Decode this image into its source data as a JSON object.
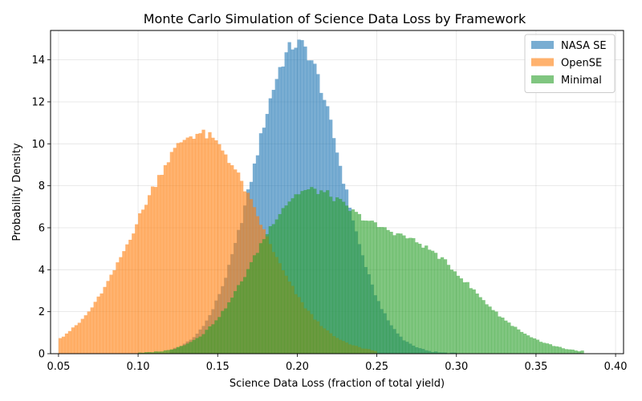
{
  "chart_data": {
    "type": "histogram",
    "title": "Monte Carlo Simulation of Science Data Loss by Framework",
    "xlabel": "Science Data Loss (fraction of total yield)",
    "ylabel": "Probability Density",
    "xlim": [
      0.045,
      0.405
    ],
    "ylim": [
      0,
      15.4
    ],
    "xticks": [
      0.05,
      0.1,
      0.15,
      0.2,
      0.25,
      0.3,
      0.35,
      0.4
    ],
    "xtick_labels": [
      "0.05",
      "0.10",
      "0.15",
      "0.20",
      "0.25",
      "0.30",
      "0.35",
      "0.40"
    ],
    "yticks": [
      0,
      2,
      4,
      6,
      8,
      10,
      12,
      14
    ],
    "ytick_labels": [
      "0",
      "2",
      "4",
      "6",
      "8",
      "10",
      "12",
      "14"
    ],
    "grid": true,
    "legend_position": "top-right",
    "series": [
      {
        "name": "NASA SE",
        "color": "#1f77b4",
        "alpha": 0.6,
        "dist": {
          "kind": "normal",
          "mean": 0.2,
          "sd": 0.027
        },
        "range": [
          0.12,
          0.3
        ],
        "bin_width": 0.002
      },
      {
        "name": "OpenSE",
        "color": "#ff7f0e",
        "alpha": 0.6,
        "dist": {
          "kind": "normal",
          "mean": 0.138,
          "sd": 0.038
        },
        "range": [
          0.05,
          0.25
        ],
        "bin_width": 0.002
      },
      {
        "name": "Minimal",
        "color": "#2ca02c",
        "alpha": 0.6,
        "dist": {
          "kind": "mixture",
          "components": [
            {
              "weight": 0.49,
              "mean": 0.2,
              "sd": 0.03
            },
            {
              "weight": 0.51,
              "mean": 0.27,
              "sd": 0.04
            }
          ]
        },
        "range": [
          0.1,
          0.38
        ],
        "bin_width": 0.002
      }
    ]
  }
}
